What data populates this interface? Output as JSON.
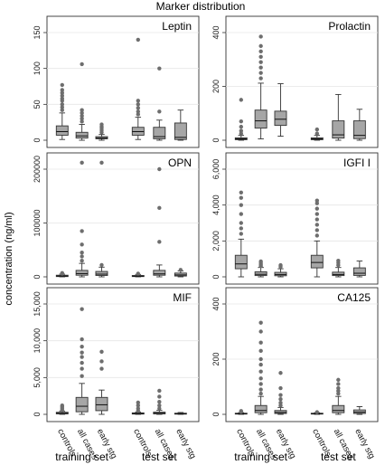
{
  "figure": {
    "title": "Marker distribution",
    "ylabel": "concentration (ng/ml)",
    "categories": [
      "controls",
      "all cases",
      "early stg"
    ],
    "groups": [
      "training set",
      "test set"
    ]
  },
  "chart_data": [
    {
      "type": "box",
      "title": "Leptin",
      "ylim": [
        0,
        150
      ],
      "yticks": [
        0,
        50,
        100,
        150
      ],
      "yticklabels": [
        "0",
        "50",
        "100",
        "150"
      ],
      "boxes": [
        {
          "group": "training set",
          "category": "controls",
          "whislo": 1,
          "q1": 7,
          "med": 12,
          "q3": 20,
          "whishi": 38,
          "fliers": [
            42,
            46,
            50,
            55,
            58,
            62,
            66,
            70,
            77
          ]
        },
        {
          "group": "training set",
          "category": "all cases",
          "whislo": 0,
          "q1": 3,
          "med": 6,
          "q3": 11,
          "whishi": 22,
          "fliers": [
            26,
            30,
            34,
            38,
            42,
            106
          ]
        },
        {
          "group": "training set",
          "category": "early stg",
          "whislo": 0,
          "q1": 2,
          "med": 3,
          "q3": 5,
          "whishi": 8,
          "fliers": [
            11,
            14,
            17,
            19,
            22
          ]
        },
        {
          "group": "test set",
          "category": "controls",
          "whislo": 1,
          "q1": 7,
          "med": 12,
          "q3": 18,
          "whishi": 32,
          "fliers": [
            36,
            40,
            45,
            50,
            55,
            140
          ]
        },
        {
          "group": "test set",
          "category": "all cases",
          "whislo": 0,
          "q1": 2,
          "med": 5,
          "q3": 18,
          "whishi": 28,
          "fliers": [
            40,
            100
          ]
        },
        {
          "group": "test set",
          "category": "early stg",
          "whislo": 0,
          "q1": 1,
          "med": 4,
          "q3": 24,
          "whishi": 42,
          "fliers": []
        }
      ]
    },
    {
      "type": "box",
      "title": "Prolactin",
      "ylim": [
        0,
        400
      ],
      "yticks": [
        0,
        200,
        400
      ],
      "yticklabels": [
        "0",
        "200",
        "400"
      ],
      "boxes": [
        {
          "group": "training set",
          "category": "controls",
          "whislo": 0,
          "q1": 2,
          "med": 5,
          "q3": 9,
          "whishi": 18,
          "fliers": [
            25,
            35,
            50,
            70,
            150
          ]
        },
        {
          "group": "training set",
          "category": "all cases",
          "whislo": 5,
          "q1": 45,
          "med": 72,
          "q3": 112,
          "whishi": 212,
          "fliers": [
            230,
            250,
            270,
            290,
            310,
            330,
            350,
            385
          ]
        },
        {
          "group": "training set",
          "category": "early stg",
          "whislo": 15,
          "q1": 55,
          "med": 78,
          "q3": 108,
          "whishi": 210,
          "fliers": []
        },
        {
          "group": "test set",
          "category": "controls",
          "whislo": 0,
          "q1": 2,
          "med": 5,
          "q3": 9,
          "whishi": 18,
          "fliers": [
            25,
            40
          ]
        },
        {
          "group": "test set",
          "category": "all cases",
          "whislo": 0,
          "q1": 8,
          "med": 20,
          "q3": 72,
          "whishi": 170,
          "fliers": []
        },
        {
          "group": "test set",
          "category": "early stg",
          "whislo": 0,
          "q1": 6,
          "med": 18,
          "q3": 72,
          "whishi": 115,
          "fliers": []
        }
      ]
    },
    {
      "type": "box",
      "title": "OPN",
      "ylim": [
        0,
        200000
      ],
      "yticks": [
        0,
        100000,
        200000
      ],
      "yticklabels": [
        "0",
        "100000",
        "200000"
      ],
      "boxes": [
        {
          "group": "training set",
          "category": "controls",
          "whislo": 0,
          "q1": 500,
          "med": 1500,
          "q3": 3000,
          "whishi": 5000,
          "fliers": [
            6000,
            7000
          ]
        },
        {
          "group": "training set",
          "category": "all cases",
          "whislo": 0,
          "q1": 3000,
          "med": 6000,
          "q3": 12000,
          "whishi": 25000,
          "fliers": [
            30000,
            38000,
            45000,
            60000,
            85000,
            212000
          ]
        },
        {
          "group": "training set",
          "category": "early stg",
          "whislo": 0,
          "q1": 2500,
          "med": 5000,
          "q3": 10000,
          "whishi": 18000,
          "fliers": [
            22000,
            212000
          ]
        },
        {
          "group": "test set",
          "category": "controls",
          "whislo": 0,
          "q1": 500,
          "med": 1200,
          "q3": 2500,
          "whishi": 4500,
          "fliers": [
            6000
          ]
        },
        {
          "group": "test set",
          "category": "all cases",
          "whislo": 0,
          "q1": 3000,
          "med": 5500,
          "q3": 12000,
          "whishi": 22000,
          "fliers": [
            65000,
            128000,
            200000
          ]
        },
        {
          "group": "test set",
          "category": "early stg",
          "whislo": 0,
          "q1": 1500,
          "med": 3500,
          "q3": 7000,
          "whishi": 11000,
          "fliers": [
            13000
          ]
        }
      ]
    },
    {
      "type": "box",
      "title": "IGFI I",
      "ylim": [
        0,
        6000
      ],
      "yticks": [
        0,
        2000,
        4000,
        6000
      ],
      "yticklabels": [
        "0",
        "2,000",
        "4,000",
        "6,000"
      ],
      "boxes": [
        {
          "group": "training set",
          "category": "controls",
          "whislo": 0,
          "q1": 450,
          "med": 720,
          "q3": 1200,
          "whishi": 2100,
          "fliers": [
            2400,
            2700,
            3000,
            3500,
            4000,
            4400,
            4700
          ]
        },
        {
          "group": "training set",
          "category": "all cases",
          "whislo": 0,
          "q1": 70,
          "med": 140,
          "q3": 280,
          "whishi": 520,
          "fliers": [
            600,
            680,
            760,
            860
          ]
        },
        {
          "group": "training set",
          "category": "early stg",
          "whislo": 0,
          "q1": 60,
          "med": 130,
          "q3": 250,
          "whishi": 450,
          "fliers": [
            560,
            650
          ]
        },
        {
          "group": "test set",
          "category": "controls",
          "whislo": 0,
          "q1": 500,
          "med": 800,
          "q3": 1200,
          "whishi": 2000,
          "fliers": [
            2300,
            2600,
            2900,
            3200,
            3500,
            3800,
            4100,
            4250
          ]
        },
        {
          "group": "test set",
          "category": "all cases",
          "whislo": 0,
          "q1": 70,
          "med": 130,
          "q3": 260,
          "whishi": 520,
          "fliers": [
            650,
            780,
            900
          ]
        },
        {
          "group": "test set",
          "category": "early stg",
          "whislo": 0,
          "q1": 80,
          "med": 200,
          "q3": 500,
          "whishi": 880,
          "fliers": []
        }
      ]
    },
    {
      "type": "box",
      "title": "MIF",
      "ylim": [
        0,
        15000
      ],
      "yticks": [
        0,
        5000,
        10000,
        15000
      ],
      "yticklabels": [
        "0",
        "5,000",
        "10,000",
        "15,000"
      ],
      "boxes": [
        {
          "group": "training set",
          "category": "controls",
          "whislo": 0,
          "q1": 60,
          "med": 150,
          "q3": 280,
          "whishi": 450,
          "fliers": [
            600,
            800,
            1000,
            1200
          ]
        },
        {
          "group": "training set",
          "category": "all cases",
          "whislo": 0,
          "q1": 350,
          "med": 1100,
          "q3": 2300,
          "whishi": 4200,
          "fliers": [
            5200,
            6200,
            7000,
            7800,
            8400,
            9200,
            10200,
            14300
          ]
        },
        {
          "group": "training set",
          "category": "early stg",
          "whislo": 0,
          "q1": 500,
          "med": 1300,
          "q3": 2300,
          "whishi": 3300,
          "fliers": [
            6200,
            7200,
            8500
          ]
        },
        {
          "group": "test set",
          "category": "controls",
          "whislo": 0,
          "q1": 40,
          "med": 100,
          "q3": 200,
          "whishi": 320,
          "fliers": [
            500,
            800,
            1200,
            1600
          ]
        },
        {
          "group": "test set",
          "category": "all cases",
          "whislo": 0,
          "q1": 60,
          "med": 150,
          "q3": 300,
          "whishi": 550,
          "fliers": [
            800,
            1200,
            1700,
            2400,
            3200
          ]
        },
        {
          "group": "test set",
          "category": "early stg",
          "whislo": 0,
          "q1": 30,
          "med": 80,
          "q3": 150,
          "whishi": 250,
          "fliers": []
        }
      ]
    },
    {
      "type": "box",
      "title": "CA125",
      "ylim": [
        0,
        400
      ],
      "yticks": [
        0,
        200,
        400
      ],
      "yticklabels": [
        "0",
        "200",
        "400"
      ],
      "boxes": [
        {
          "group": "training set",
          "category": "controls",
          "whislo": 0,
          "q1": 1,
          "med": 2,
          "q3": 4,
          "whishi": 6,
          "fliers": [
            9,
            12
          ]
        },
        {
          "group": "training set",
          "category": "all cases",
          "whislo": 0,
          "q1": 6,
          "med": 14,
          "q3": 32,
          "whishi": 65,
          "fliers": [
            75,
            90,
            110,
            130,
            155,
            180,
            200,
            230,
            260,
            300,
            332
          ]
        },
        {
          "group": "training set",
          "category": "early stg",
          "whislo": 0,
          "q1": 3,
          "med": 7,
          "q3": 14,
          "whishi": 25,
          "fliers": [
            32,
            42,
            55,
            70,
            95,
            150
          ]
        },
        {
          "group": "test set",
          "category": "controls",
          "whislo": 0,
          "q1": 1,
          "med": 2,
          "q3": 4,
          "whishi": 6,
          "fliers": [
            8
          ]
        },
        {
          "group": "test set",
          "category": "all cases",
          "whislo": 0,
          "q1": 6,
          "med": 14,
          "q3": 32,
          "whishi": 65,
          "fliers": [
            75,
            85,
            95,
            110,
            125
          ]
        },
        {
          "group": "test set",
          "category": "early stg",
          "whislo": 0,
          "q1": 3,
          "med": 8,
          "q3": 16,
          "whishi": 28,
          "fliers": []
        }
      ]
    }
  ]
}
